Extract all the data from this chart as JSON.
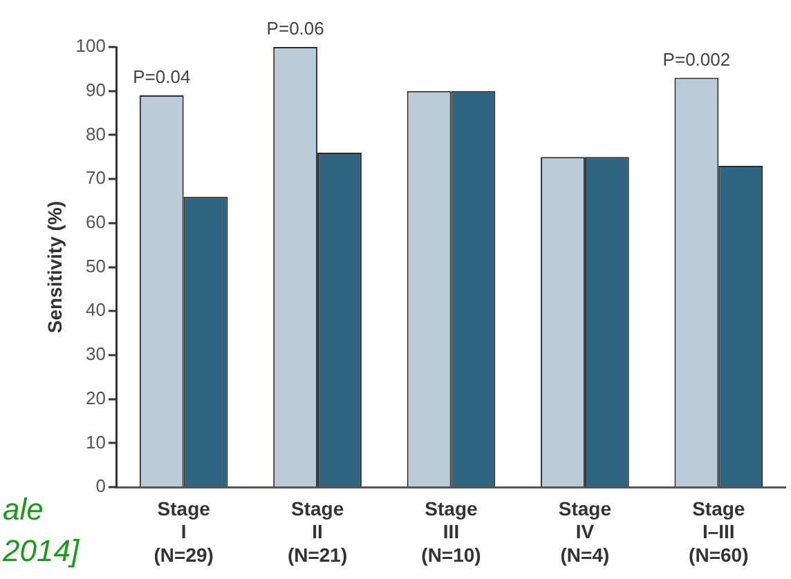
{
  "chart_data": {
    "type": "bar",
    "ylabel": "Sensitivity (%)",
    "categories": [
      "Stage\nI\n(N=29)",
      "Stage\nII\n(N=21)",
      "Stage\nIII\n(N=10)",
      "Stage\nIV\n(N=4)",
      "Stage\nI–III\n(N=60)"
    ],
    "series": [
      {
        "color": "#b9ccd7",
        "values": [
          89,
          100,
          90,
          75,
          93
        ]
      },
      {
        "color": "#2f6580",
        "values": [
          66,
          76,
          90,
          75,
          73
        ]
      }
    ],
    "ylim": [
      0,
      100
    ],
    "yticks": [
      0,
      10,
      20,
      30,
      40,
      50,
      60,
      70,
      80,
      90,
      100
    ],
    "grid": false,
    "legend": false,
    "annotations": [
      {
        "text": "P=0.04",
        "x": "Stage\nI\n(N=29)",
        "y": 89
      },
      {
        "text": "P=0.06",
        "x": "Stage\nII\n(N=21)",
        "y": 100
      },
      {
        "text": "P=0.002",
        "x": "Stage\nI–III\n(N=60)",
        "y": 93
      },
      "ale",
      "2014]"
    ]
  }
}
